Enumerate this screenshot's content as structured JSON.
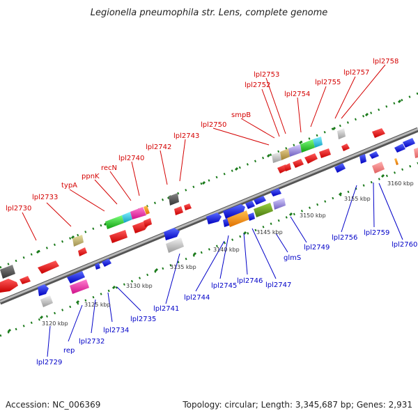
{
  "title": "Legionella pneumophila str. Lens, complete genome",
  "footer": {
    "accession": "Accession: NC_006369",
    "topology": "Topology: circular; Length: 3,345,687 bp; Genes: 2,931"
  },
  "colors": {
    "top_label": "#d40000",
    "bottom_label": "#0000c8",
    "backbone": "#7a7a7a",
    "track_dots": "#1a7a1a"
  },
  "scale_ticks": [
    "3120 kbp",
    "3125 kbp",
    "3130 kbp",
    "3135 kbp",
    "3140 kbp",
    "3145 kbp",
    "3150 kbp",
    "3155 kbp",
    "3160 kbp"
  ],
  "top_labels": [
    "lpl2730",
    "lpl2733",
    "typA",
    "ppnK",
    "recN",
    "lpl2740",
    "lpl2742",
    "lpl2743",
    "lpl2750",
    "smpB",
    "lpl2752",
    "lpl2753",
    "lpl2754",
    "lpl2755",
    "lpl2757",
    "lpl2758"
  ],
  "bottom_labels": [
    "lpl2729",
    "rep",
    "lpl2732",
    "lpl2734",
    "lpl2735",
    "lpl2741",
    "lpl2744",
    "lpl2745",
    "lpl2746",
    "lpl2747",
    "glmS",
    "lpl2749",
    "lpl2756",
    "lpl2759",
    "lpl2760"
  ]
}
